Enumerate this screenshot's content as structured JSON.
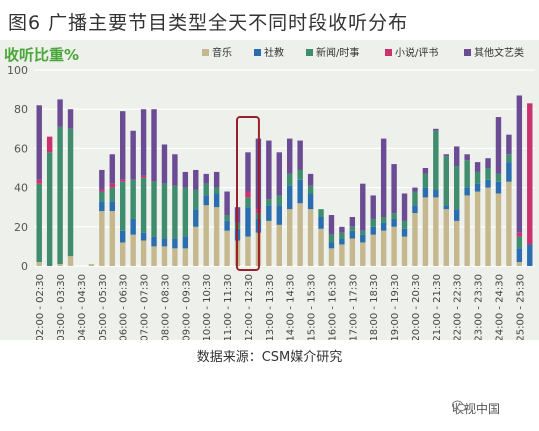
{
  "page_title": "图6 广播主要节目类型全天不同时段收听分布",
  "source_text": "数据来源：CSM媒介研究",
  "watermark_text": "收视中国",
  "chart_data": {
    "type": "bar",
    "stacked": true,
    "ylabel": "收听比重%",
    "ylim": [
      0,
      100
    ],
    "yticks": [
      0,
      20,
      40,
      60,
      80,
      100
    ],
    "grid": true,
    "legend_position": "top",
    "highlight_category": "12:00 - 12:30",
    "categories": [
      "02:00 - 02:30",
      "02:30 - 03:00",
      "03:00 - 03:30",
      "03:30 - 04:00",
      "04:00 - 04:30",
      "04:30 - 05:00",
      "05:00 - 05:30",
      "05:30 - 06:00",
      "06:00 - 06:30",
      "06:30 - 07:00",
      "07:00 - 07:30",
      "07:30 - 08:00",
      "08:00 - 08:30",
      "08:30 - 09:00",
      "09:00 - 09:30",
      "09:30 - 10:00",
      "10:00 - 10:30",
      "10:30 - 11:00",
      "11:00 - 11:30",
      "11:30 - 12:00",
      "12:00 - 12:30",
      "12:30 - 13:00",
      "13:00 - 13:30",
      "13:30 - 14:00",
      "14:00 - 14:30",
      "14:30 - 15:00",
      "15:00 - 15:30",
      "15:30 - 16:00",
      "16:00 - 16:30",
      "16:30 - 17:00",
      "17:00 - 17:30",
      "17:30 - 18:00",
      "18:00 - 18:30",
      "18:30 - 19:00",
      "19:00 - 19:30",
      "19:30 - 20:00",
      "20:00 - 20:30",
      "20:30 - 21:00",
      "21:00 - 21:30",
      "21:30 - 22:00",
      "22:00 - 22:30",
      "22:30 - 23:00",
      "23:00 - 23:30",
      "23:30 - 24:00",
      "24:00 - 24:30",
      "24:30 - 25:00",
      "25:00 - 25:30",
      "25:30 - 26:00"
    ],
    "tick_labels": [
      "02:00 - 02:30",
      "03:00 - 03:30",
      "04:00 - 04:30",
      "05:00 - 05:30",
      "06:00 - 06:30",
      "07:00 - 07:30",
      "08:00 - 08:30",
      "09:00 - 09:30",
      "10:00 - 10:30",
      "11:00 - 11:30",
      "12:00 - 12:30",
      "13:00 - 13:30",
      "14:00 - 14:30",
      "15:00 - 15:30",
      "16:00 - 16:30",
      "17:00 - 17:30",
      "18:00 - 18:30",
      "19:00 - 19:30",
      "20:00 - 20:30",
      "21:00 - 21:30",
      "22:00 - 22:30",
      "23:00 - 23:30",
      "24:00 - 24:30",
      "25:00 - 25:30"
    ],
    "series": [
      {
        "name": "音乐",
        "color": "#c6b88e",
        "values": [
          2,
          0,
          1,
          5,
          0,
          1,
          28,
          28,
          12,
          16,
          13,
          10,
          10,
          9,
          9,
          20,
          31,
          30,
          18,
          13,
          15,
          17,
          23,
          21,
          29,
          32,
          29,
          19,
          9,
          11,
          14,
          12,
          16,
          18,
          20,
          15,
          27,
          35,
          35,
          29,
          23,
          36,
          38,
          40,
          37,
          43,
          2,
          0
        ]
      },
      {
        "name": "社教",
        "color": "#2a6eb0",
        "values": [
          0,
          0,
          0,
          0,
          0,
          0,
          5,
          5,
          6,
          8,
          4,
          5,
          4,
          5,
          6,
          9,
          5,
          7,
          5,
          6,
          15,
          7,
          8,
          10,
          12,
          12,
          8,
          6,
          3,
          3,
          4,
          4,
          4,
          4,
          4,
          4,
          4,
          5,
          4,
          2,
          6,
          4,
          4,
          4,
          6,
          10,
          7,
          11
        ]
      },
      {
        "name": "新闻/时事",
        "color": "#3f8c6f",
        "values": [
          40,
          58,
          70,
          65,
          0,
          0,
          5,
          7,
          25,
          20,
          28,
          28,
          28,
          27,
          25,
          10,
          6,
          3,
          3,
          3,
          5,
          3,
          3,
          5,
          6,
          5,
          4,
          4,
          4,
          3,
          2,
          2,
          4,
          3,
          3,
          4,
          7,
          7,
          30,
          25,
          22,
          14,
          6,
          6,
          4,
          4,
          6,
          0
        ]
      },
      {
        "name": "小说/评书",
        "color": "#c9326f",
        "values": [
          2,
          8,
          0,
          0,
          0,
          0,
          1,
          2,
          1,
          0,
          1,
          0,
          0,
          0,
          0,
          0,
          0,
          0,
          0,
          0,
          3,
          2,
          0,
          0,
          0,
          0,
          0,
          0,
          0,
          0,
          0,
          0,
          0,
          0,
          0,
          0,
          0,
          0,
          0,
          0,
          0,
          0,
          0,
          0,
          0,
          0,
          2,
          72
        ]
      },
      {
        "name": "其他文艺类",
        "color": "#6b4c94",
        "values": [
          38,
          0,
          14,
          10,
          0,
          0,
          10,
          15,
          35,
          25,
          34,
          37,
          20,
          16,
          8,
          10,
          5,
          8,
          12,
          8,
          20,
          36,
          30,
          22,
          18,
          15,
          6,
          0,
          10,
          3,
          5,
          24,
          12,
          40,
          25,
          14,
          2,
          3,
          1,
          1,
          10,
          3,
          5,
          5,
          29,
          10,
          70,
          0
        ]
      }
    ]
  }
}
